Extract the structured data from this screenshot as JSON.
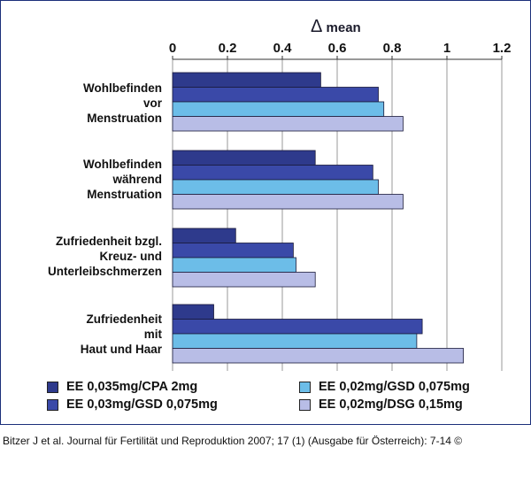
{
  "chart_data": {
    "type": "bar",
    "orientation": "horizontal",
    "title": "Δ mean",
    "xlabel": "Δ mean",
    "ylabel": "",
    "xlim": [
      0,
      1.2
    ],
    "xticks": [
      "0",
      "0.2",
      "0.4",
      "0.6",
      "0.8",
      "1",
      "1.2"
    ],
    "grid": true,
    "legend_position": "bottom",
    "categories": [
      "Wohlbefinden\nvor\nMenstruation",
      "Wohlbefinden\nwährend\nMenstruation",
      "Zufriedenheit bzgl.\nKreuz- und\nUnterleibschmerzen",
      "Zufriedenheit\nmit\nHaut und Haar"
    ],
    "series": [
      {
        "name": "EE 0,035mg/CPA 2mg",
        "color": "#2e3a8c",
        "values": [
          0.54,
          0.52,
          0.23,
          0.15
        ]
      },
      {
        "name": "EE 0,03mg/GSD 0,075mg",
        "color": "#3a49a8",
        "values": [
          0.75,
          0.73,
          0.44,
          0.91
        ]
      },
      {
        "name": "EE 0,02mg/GSD 0,075mg",
        "color": "#6cbde8",
        "values": [
          0.77,
          0.75,
          0.45,
          0.89
        ]
      },
      {
        "name": "EE 0,02mg/DSG 0,15mg",
        "color": "#b8bde6",
        "values": [
          0.84,
          0.84,
          0.52,
          1.06
        ]
      }
    ]
  },
  "axis_title": {
    "delta": "Δ",
    "text": "mean"
  },
  "citation": "Bitzer J et al. Journal für Fertilität und Reproduktion 2007; 17 (1) (Ausgabe für Österreich): 7-14 ©"
}
